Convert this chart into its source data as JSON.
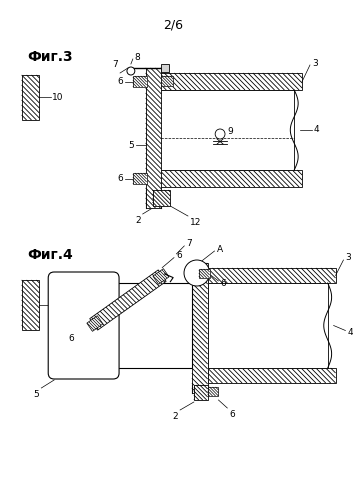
{
  "page_label": "2/6",
  "fig3_label": "Фиг.3",
  "fig4_label": "Фиг.4",
  "bg_color": "#ffffff",
  "line_color": "#000000"
}
